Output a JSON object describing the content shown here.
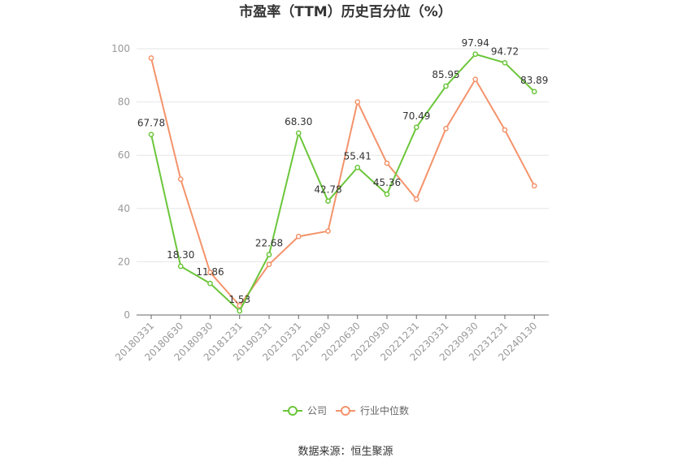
{
  "chart_data": {
    "type": "line",
    "title": "市盈率（TTM）历史百分位（%）",
    "categories": [
      "20180331",
      "20180630",
      "20180930",
      "20181231",
      "20190331",
      "20210331",
      "20210630",
      "20220630",
      "20220930",
      "20221231",
      "20230331",
      "20230930",
      "20231231",
      "20240130"
    ],
    "series": [
      {
        "name": "公司",
        "color": "#6bc63a",
        "values": [
          67.78,
          18.3,
          11.86,
          1.53,
          22.68,
          68.3,
          42.78,
          55.41,
          45.36,
          70.49,
          85.95,
          97.94,
          94.72,
          83.89
        ],
        "labels": [
          "67.78",
          "18.30",
          "11.86",
          "1.53",
          "22.68",
          "68.30",
          "42.78",
          "55.41",
          "45.36",
          "70.49",
          "85.95",
          "97.94",
          "94.72",
          "83.89"
        ]
      },
      {
        "name": "行业中位数",
        "color": "#f4936b",
        "values": [
          96.5,
          51.0,
          16.0,
          3.5,
          19.0,
          29.5,
          31.5,
          80.0,
          57.0,
          43.5,
          70.0,
          88.5,
          69.5,
          48.5
        ]
      }
    ],
    "yticks": [
      "0",
      "20",
      "40",
      "60",
      "80",
      "100"
    ],
    "ylim": [
      0,
      100
    ],
    "grid": true,
    "legend_position": "bottom"
  },
  "source": "数据来源：恒生聚源"
}
